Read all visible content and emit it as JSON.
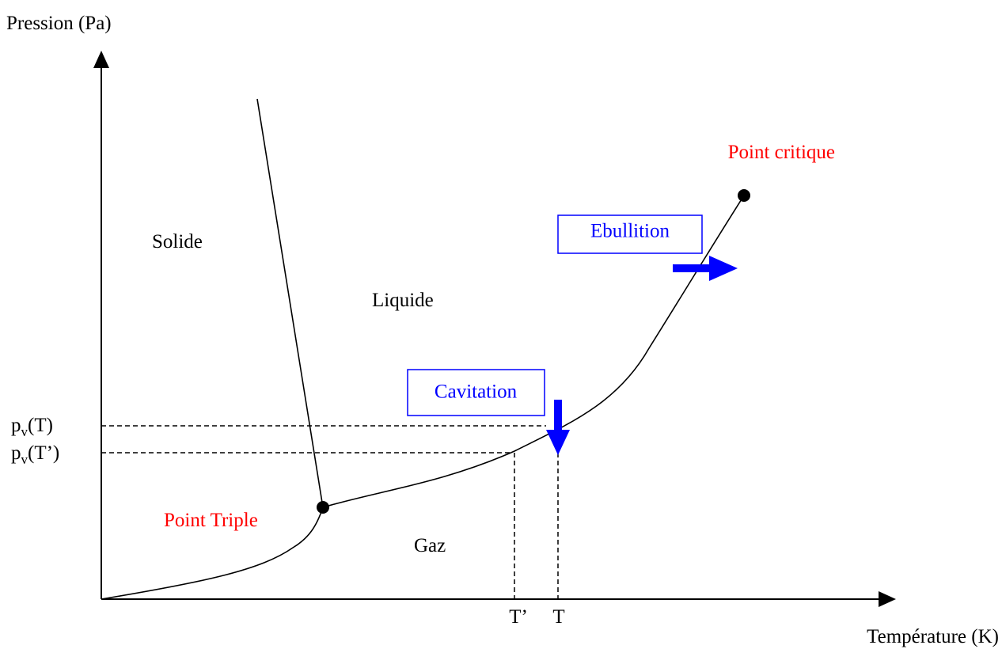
{
  "axes": {
    "y_label": "Pression (Pa)",
    "x_label": "Température (K)"
  },
  "regions": {
    "solid": "Solide",
    "liquid": "Liquide",
    "gas": "Gaz"
  },
  "points": {
    "critical": "Point critique",
    "triple": "Point Triple"
  },
  "processes": {
    "boiling": "Ebullition",
    "cavitation": "Cavitation"
  },
  "pressure_marks": [
    {
      "base": "p",
      "sub": "v",
      "arg": "(T)"
    },
    {
      "base": "p",
      "sub": "v",
      "arg": "(T’)"
    }
  ],
  "temperature_marks": [
    "T’",
    "T"
  ]
}
